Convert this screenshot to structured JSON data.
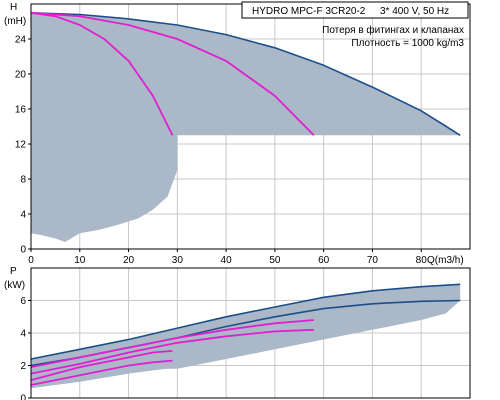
{
  "header": {
    "model": "HYDRO MPC-F 3CR20-2",
    "supply": "3* 400 V, 50 Hz"
  },
  "notes": {
    "line1": "Потеря в фитингах и клапанах",
    "line2": "Плотность = 1000 kg/m3"
  },
  "colors": {
    "envelope_fill": "#aab8c8",
    "frame": "#000000",
    "grid": "#c8c8c8",
    "max_curve": "#1b4f8a",
    "duty_curve": "#e020d0",
    "power_line": "#1b4f8a"
  },
  "chart_data": [
    {
      "type": "area",
      "name": "head-chart",
      "ylabel": "H",
      "yunit": "(mH)",
      "xlabel": "Q(m3/h)",
      "xlim": [
        0,
        90
      ],
      "ylim": [
        0,
        28
      ],
      "xticks": [
        0,
        10,
        20,
        30,
        40,
        50,
        60,
        70,
        80
      ],
      "yticks": [
        0,
        4,
        8,
        12,
        16,
        20,
        24
      ],
      "grid": true,
      "envelope": {
        "upper": [
          [
            0,
            27
          ],
          [
            10,
            26.8
          ],
          [
            20,
            26.3
          ],
          [
            30,
            25.6
          ],
          [
            40,
            24.5
          ],
          [
            50,
            23
          ],
          [
            60,
            21
          ],
          [
            70,
            18.5
          ],
          [
            80,
            15.8
          ],
          [
            85,
            14.2
          ],
          [
            88,
            13
          ]
        ],
        "inner_boundary": [
          [
            88,
            13
          ],
          [
            30,
            13
          ],
          [
            30,
            9
          ],
          [
            28,
            6
          ],
          [
            25,
            4.5
          ],
          [
            22,
            3.5
          ],
          [
            18,
            2.8
          ],
          [
            14,
            2.2
          ],
          [
            10,
            1.8
          ],
          [
            7,
            0.8
          ],
          [
            5,
            1.2
          ],
          [
            2,
            1.6
          ],
          [
            0,
            1.8
          ]
        ]
      },
      "series": [
        {
          "role": "max",
          "points": [
            [
              0,
              27
            ],
            [
              10,
              26.8
            ],
            [
              20,
              26.3
            ],
            [
              30,
              25.6
            ],
            [
              40,
              24.5
            ],
            [
              50,
              23
            ],
            [
              60,
              21
            ],
            [
              70,
              18.5
            ],
            [
              80,
              15.8
            ],
            [
              88,
              13
            ]
          ]
        },
        {
          "role": "duty",
          "points": [
            [
              0,
              27
            ],
            [
              10,
              26.6
            ],
            [
              20,
              25.6
            ],
            [
              30,
              24
            ],
            [
              40,
              21.5
            ],
            [
              50,
              17.5
            ],
            [
              58,
              13
            ]
          ]
        },
        {
          "role": "duty",
          "points": [
            [
              0,
              27
            ],
            [
              5,
              26.6
            ],
            [
              10,
              25.6
            ],
            [
              15,
              24
            ],
            [
              20,
              21.5
            ],
            [
              25,
              17.5
            ],
            [
              29,
              13
            ]
          ]
        }
      ]
    },
    {
      "type": "area",
      "name": "power-chart",
      "ylabel": "P",
      "yunit": "(kW)",
      "xlim": [
        0,
        90
      ],
      "ylim": [
        0,
        8
      ],
      "yticks": [
        0,
        2,
        4,
        6
      ],
      "grid": true,
      "envelope": {
        "upper": [
          [
            0,
            2.4
          ],
          [
            10,
            3.0
          ],
          [
            20,
            3.6
          ],
          [
            30,
            4.3
          ],
          [
            40,
            5.0
          ],
          [
            50,
            5.6
          ],
          [
            60,
            6.2
          ],
          [
            70,
            6.6
          ],
          [
            80,
            6.85
          ],
          [
            85,
            6.95
          ],
          [
            88,
            7.0
          ]
        ],
        "lower": [
          [
            0,
            0.6
          ],
          [
            10,
            1.0
          ],
          [
            20,
            1.5
          ],
          [
            25,
            1.7
          ],
          [
            28,
            1.8
          ],
          [
            30,
            1.8
          ],
          [
            40,
            2.4
          ],
          [
            50,
            3.0
          ],
          [
            60,
            3.6
          ],
          [
            70,
            4.2
          ],
          [
            80,
            4.8
          ],
          [
            85,
            5.2
          ],
          [
            88,
            6.0
          ]
        ]
      },
      "series": [
        {
          "role": "max",
          "points": [
            [
              0,
              2.4
            ],
            [
              10,
              3.0
            ],
            [
              20,
              3.6
            ],
            [
              30,
              4.3
            ],
            [
              40,
              5.0
            ],
            [
              50,
              5.6
            ],
            [
              60,
              6.2
            ],
            [
              70,
              6.6
            ],
            [
              80,
              6.85
            ],
            [
              88,
              7.0
            ]
          ]
        },
        {
          "role": "max",
          "points": [
            [
              0,
              2.0
            ],
            [
              10,
              2.5
            ],
            [
              20,
              3.1
            ],
            [
              30,
              3.7
            ],
            [
              40,
              4.4
            ],
            [
              50,
              5.0
            ],
            [
              60,
              5.5
            ],
            [
              70,
              5.8
            ],
            [
              80,
              5.95
            ],
            [
              88,
              6.0
            ]
          ]
        },
        {
          "role": "duty",
          "points": [
            [
              0,
              1.9
            ],
            [
              10,
              2.5
            ],
            [
              20,
              3.1
            ],
            [
              30,
              3.7
            ],
            [
              40,
              4.2
            ],
            [
              50,
              4.6
            ],
            [
              58,
              4.8
            ]
          ]
        },
        {
          "role": "duty",
          "points": [
            [
              0,
              1.5
            ],
            [
              10,
              2.1
            ],
            [
              20,
              2.8
            ],
            [
              30,
              3.4
            ],
            [
              40,
              3.8
            ],
            [
              50,
              4.1
            ],
            [
              58,
              4.2
            ]
          ]
        },
        {
          "role": "duty",
          "points": [
            [
              0,
              1.1
            ],
            [
              5,
              1.5
            ],
            [
              10,
              1.9
            ],
            [
              15,
              2.2
            ],
            [
              20,
              2.5
            ],
            [
              25,
              2.8
            ],
            [
              29,
              2.9
            ]
          ]
        },
        {
          "role": "duty",
          "points": [
            [
              0,
              0.8
            ],
            [
              5,
              1.1
            ],
            [
              10,
              1.4
            ],
            [
              15,
              1.7
            ],
            [
              20,
              2.0
            ],
            [
              25,
              2.2
            ],
            [
              29,
              2.3
            ]
          ]
        }
      ]
    }
  ]
}
